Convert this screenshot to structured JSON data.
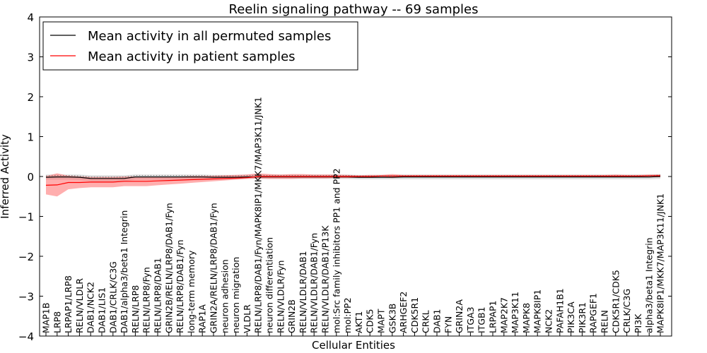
{
  "chart_data": {
    "type": "line",
    "title": "Reelin signaling pathway -- 69 samples",
    "xlabel": "Cellular Entities",
    "ylabel": "Inferred Activity",
    "ylim": [
      -4,
      4
    ],
    "yticks": [
      "−4",
      "−3",
      "−2",
      "−1",
      "0",
      "1",
      "2",
      "3",
      "4"
    ],
    "grid": false,
    "legend_position": "top-left",
    "categories": [
      "MAP1B",
      "LRP8",
      "LRPAP1/LRP8",
      "RELN/VLDLR",
      "DAB1/NCK2",
      "DAB1/LIS1",
      "DAB1/CRLK/C3G",
      "DAB1/alpha3/beta1 Integrin",
      "RELN/LRP8",
      "RELN/LRP8/Fyn",
      "RELN/LRP8/DAB1",
      "GRIN2B/RELN/LRP8/DAB1/Fyn",
      "RELN/LRP8/DAB1/Fyn",
      "long-term memory",
      "RAP1A",
      "GRIN2A/RELN/LRP8/DAB1/Fyn",
      "neuron adhesion",
      "neuron migration",
      "VLDLR",
      "RELN/LRP8/DAB1/Fyn/MAPK8IP1/MKK7/MAP3K11/JNK1",
      "neuron differentiation",
      "RELN/VLDLR/Fyn",
      "GRIN2B",
      "RELN/VLDLR/DAB1",
      "RELN/VLDLR/DAB1/Fyn",
      "RELN/VLDLR/DAB1/P13K",
      "mol:Src family inhibitors PP1 and PP2",
      "mol:PP2",
      "AKT1",
      "CDK5",
      "MAPT",
      "GSK3B",
      "ARHGEF2",
      "CDK5R1",
      "CRKL",
      "DAB1",
      "FYN",
      "GRIN2A",
      "ITGA3",
      "ITGB1",
      "LRPAP1",
      "MAP2K7",
      "MAP3K11",
      "MAPK8",
      "MAPK8IP1",
      "NCK2",
      "PAFAH1B1",
      "PIK3CA",
      "PIK3R1",
      "RAPGEF1",
      "RELN",
      "CDK5R1/CDK5",
      "CRLK/C3G",
      "PI3K",
      "alpha3/beta1 Integrin",
      "MAPK8IP1/MKK7/MAP3K11/JNK1"
    ],
    "series": [
      {
        "name": "Mean activity in all permuted samples",
        "color": "#000000",
        "values": [
          -0.02,
          -0.01,
          -0.01,
          -0.02,
          -0.05,
          -0.05,
          -0.05,
          -0.05,
          -0.01,
          -0.01,
          -0.01,
          -0.01,
          -0.01,
          -0.01,
          -0.01,
          -0.02,
          -0.02,
          -0.02,
          -0.01,
          -0.01,
          -0.01,
          -0.01,
          -0.01,
          -0.01,
          -0.01,
          -0.01,
          -0.01,
          -0.01,
          -0.02,
          -0.02,
          -0.02,
          -0.02,
          -0.01,
          -0.01,
          -0.01,
          -0.01,
          -0.01,
          -0.01,
          -0.01,
          -0.01,
          -0.01,
          -0.01,
          -0.01,
          -0.01,
          -0.01,
          -0.01,
          -0.01,
          -0.01,
          -0.01,
          -0.01,
          -0.01,
          -0.01,
          -0.01,
          -0.01,
          -0.01,
          0.0
        ],
        "band_low": [
          -0.08,
          -0.08,
          -0.08,
          -0.09,
          -0.12,
          -0.12,
          -0.12,
          -0.12,
          -0.08,
          -0.08,
          -0.08,
          -0.08,
          -0.08,
          -0.08,
          -0.08,
          -0.08,
          -0.08,
          -0.07,
          -0.06,
          -0.06,
          -0.06,
          -0.06,
          -0.06,
          -0.06,
          -0.06,
          -0.06,
          -0.06,
          -0.06,
          -0.07,
          -0.07,
          -0.07,
          -0.07,
          -0.07,
          -0.07,
          -0.07,
          -0.07,
          -0.07,
          -0.07,
          -0.07,
          -0.07,
          -0.07,
          -0.07,
          -0.07,
          -0.07,
          -0.07,
          -0.07,
          -0.07,
          -0.07,
          -0.07,
          -0.07,
          -0.07,
          -0.07,
          -0.07,
          -0.07,
          -0.07,
          -0.06
        ],
        "band_high": [
          0.05,
          0.05,
          0.05,
          0.05,
          0.03,
          0.03,
          0.03,
          0.03,
          0.05,
          0.05,
          0.05,
          0.05,
          0.05,
          0.05,
          0.05,
          0.04,
          0.04,
          0.04,
          0.05,
          0.05,
          0.05,
          0.05,
          0.05,
          0.05,
          0.05,
          0.05,
          0.05,
          0.05,
          0.04,
          0.04,
          0.04,
          0.04,
          0.05,
          0.05,
          0.05,
          0.05,
          0.05,
          0.05,
          0.05,
          0.05,
          0.05,
          0.05,
          0.05,
          0.05,
          0.05,
          0.05,
          0.05,
          0.05,
          0.05,
          0.05,
          0.05,
          0.05,
          0.05,
          0.05,
          0.05,
          0.06
        ]
      },
      {
        "name": "Mean activity in patient samples",
        "color": "#ff0000",
        "values": [
          -0.22,
          -0.21,
          -0.15,
          -0.15,
          -0.14,
          -0.14,
          -0.14,
          -0.12,
          -0.12,
          -0.12,
          -0.11,
          -0.1,
          -0.09,
          -0.08,
          -0.07,
          -0.06,
          -0.05,
          -0.04,
          -0.03,
          0.0,
          0.0,
          0.0,
          0.0,
          0.0,
          0.0,
          0.0,
          0.0,
          0.0,
          0.0,
          0.0,
          0.01,
          0.01,
          0.01,
          0.01,
          0.01,
          0.01,
          0.01,
          0.01,
          0.01,
          0.01,
          0.01,
          0.01,
          0.01,
          0.01,
          0.01,
          0.01,
          0.01,
          0.01,
          0.01,
          0.01,
          0.01,
          0.01,
          0.01,
          0.01,
          0.02,
          0.02
        ],
        "band_low": [
          -0.45,
          -0.5,
          -0.32,
          -0.29,
          -0.27,
          -0.27,
          -0.27,
          -0.24,
          -0.24,
          -0.24,
          -0.22,
          -0.2,
          -0.18,
          -0.16,
          -0.14,
          -0.12,
          -0.1,
          -0.08,
          -0.06,
          -0.05,
          -0.06,
          -0.06,
          -0.06,
          -0.05,
          -0.05,
          -0.05,
          -0.04,
          -0.04,
          -0.03,
          -0.03,
          -0.02,
          -0.04,
          -0.02,
          -0.02,
          -0.02,
          -0.02,
          -0.02,
          -0.02,
          -0.02,
          -0.02,
          -0.02,
          -0.02,
          -0.02,
          -0.02,
          -0.02,
          -0.02,
          -0.02,
          -0.02,
          -0.02,
          -0.02,
          -0.02,
          -0.02,
          -0.02,
          -0.02,
          -0.01,
          -0.01
        ],
        "band_high": [
          0.01,
          0.08,
          0.02,
          0.0,
          -0.01,
          -0.01,
          -0.01,
          0.0,
          0.0,
          0.0,
          0.0,
          0.0,
          0.0,
          0.01,
          0.01,
          0.02,
          0.03,
          0.04,
          0.05,
          0.08,
          0.06,
          0.05,
          0.06,
          0.06,
          0.05,
          0.05,
          0.05,
          0.04,
          0.03,
          0.04,
          0.04,
          0.06,
          0.04,
          0.04,
          0.04,
          0.04,
          0.04,
          0.04,
          0.04,
          0.04,
          0.04,
          0.04,
          0.04,
          0.04,
          0.04,
          0.04,
          0.04,
          0.04,
          0.04,
          0.04,
          0.04,
          0.05,
          0.04,
          0.04,
          0.05,
          0.05
        ]
      }
    ],
    "colors": {
      "permuted_band": "#c8c8c8",
      "patient_band": "#ff6b6b"
    }
  }
}
